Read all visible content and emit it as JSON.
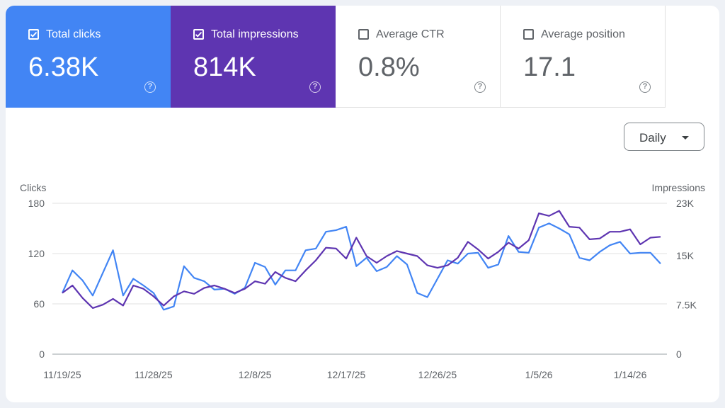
{
  "metrics": [
    {
      "label": "Total clicks",
      "value": "6.38K",
      "checked": true
    },
    {
      "label": "Total impressions",
      "value": "814K",
      "checked": true
    },
    {
      "label": "Average CTR",
      "value": "0.8%",
      "checked": false
    },
    {
      "label": "Average position",
      "value": "17.1",
      "checked": false
    }
  ],
  "help_glyph": "?",
  "granularity": {
    "selected": "Daily"
  },
  "colors": {
    "clicks": "#4285f4",
    "impressions": "#5e35b1",
    "grid": "#e0e0e0",
    "axis_text": "#5f6368"
  },
  "chart_data": {
    "type": "line",
    "left_axis_label": "Clicks",
    "right_axis_label": "Impressions",
    "left_ylim": [
      0,
      180
    ],
    "right_ylim": [
      0,
      23000
    ],
    "left_ticks": [
      {
        "value": 0,
        "label": "0"
      },
      {
        "value": 60,
        "label": "60"
      },
      {
        "value": 120,
        "label": "120"
      },
      {
        "value": 180,
        "label": "180"
      }
    ],
    "right_ticks": [
      {
        "value": 0,
        "label": "0"
      },
      {
        "value": 7500,
        "label": "7.5K"
      },
      {
        "value": 15000,
        "label": "15K"
      },
      {
        "value": 23000,
        "label": "23K"
      }
    ],
    "x_ticks": [
      {
        "index": 0,
        "label": "11/19/25"
      },
      {
        "index": 9,
        "label": "11/28/25"
      },
      {
        "index": 19,
        "label": "12/8/25"
      },
      {
        "index": 28,
        "label": "12/17/25"
      },
      {
        "index": 37,
        "label": "12/26/25"
      },
      {
        "index": 47,
        "label": "1/5/26"
      },
      {
        "index": 56,
        "label": "1/14/26"
      }
    ],
    "grid": true,
    "series": [
      {
        "name": "Total clicks",
        "axis": "left",
        "values": [
          73,
          100,
          88,
          70,
          97,
          124,
          70,
          90,
          82,
          73,
          53,
          57,
          105,
          91,
          87,
          77,
          78,
          72,
          79,
          109,
          104,
          83,
          100,
          100,
          124,
          126,
          146,
          148,
          152,
          105,
          115,
          99,
          104,
          117,
          107,
          73,
          68,
          90,
          112,
          108,
          120,
          121,
          103,
          107,
          141,
          122,
          121,
          151,
          156,
          150,
          143,
          115,
          112,
          122,
          130,
          134,
          120,
          121,
          121,
          108
        ],
        "points": []
      },
      {
        "name": "Total impressions",
        "axis": "left_scaled",
        "values": [
          73,
          82,
          67,
          55,
          59,
          66,
          58,
          82,
          78,
          69,
          58,
          69,
          75,
          72,
          79,
          82,
          78,
          73,
          78,
          87,
          84,
          98,
          91,
          87,
          100,
          112,
          127,
          126,
          114,
          139,
          117,
          109,
          117,
          123,
          120,
          117,
          106,
          103,
          106,
          115,
          134,
          125,
          114,
          122,
          133,
          126,
          136,
          168,
          165,
          171,
          152,
          151,
          137,
          138,
          146,
          146,
          149,
          131,
          139,
          140
        ]
      }
    ]
  }
}
